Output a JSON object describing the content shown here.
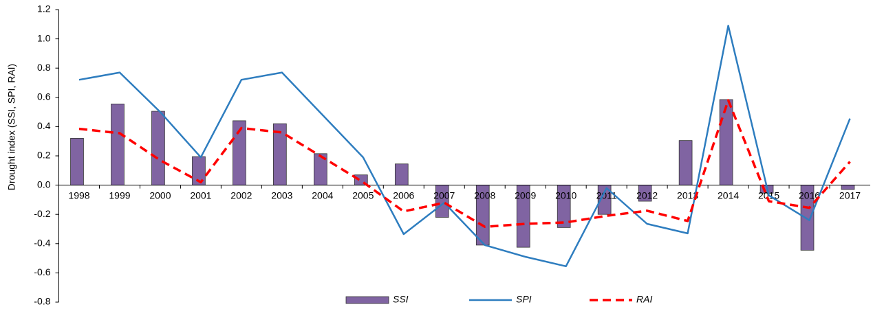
{
  "chart_data": {
    "type": "bar-line",
    "y_label": "Drought index (SSI, SPI, RAI)",
    "categories": [
      "1998",
      "1999",
      "2000",
      "2001",
      "2002",
      "2003",
      "2004",
      "2005",
      "2006",
      "2007",
      "2008",
      "2009",
      "2010",
      "2011",
      "2012",
      "2013",
      "2014",
      "2015",
      "2016",
      "2017"
    ],
    "series": [
      {
        "name": "SSI",
        "type": "bar",
        "color": "#8064a2",
        "values": [
          0.32,
          0.555,
          0.505,
          0.195,
          0.44,
          0.42,
          0.215,
          0.07,
          0.145,
          -0.22,
          -0.41,
          -0.425,
          -0.29,
          -0.2,
          -0.11,
          0.305,
          0.585,
          -0.055,
          -0.445,
          -0.03
        ]
      },
      {
        "name": "SPI",
        "type": "line",
        "color": "#2e7dbf",
        "values": [
          0.72,
          0.77,
          0.5,
          0.19,
          0.72,
          0.77,
          0.48,
          0.19,
          -0.335,
          -0.12,
          -0.41,
          -0.49,
          -0.555,
          -0.02,
          -0.265,
          -0.33,
          1.09,
          -0.07,
          -0.24,
          0.455
        ]
      },
      {
        "name": "RAI",
        "type": "line",
        "dashed": true,
        "color": "#ff0000",
        "values": [
          0.385,
          0.355,
          0.17,
          0.02,
          0.39,
          0.36,
          0.19,
          0.02,
          -0.18,
          -0.12,
          -0.285,
          -0.265,
          -0.255,
          -0.21,
          -0.175,
          -0.245,
          0.58,
          -0.11,
          -0.155,
          0.16
        ]
      }
    ],
    "ylim": [
      -0.8,
      1.2
    ],
    "yticks": [
      -0.8,
      -0.6,
      -0.4,
      -0.2,
      {
        "value": 0,
        "label": "0.0"
      },
      0.2,
      0.4,
      0.6,
      0.8,
      {
        "value": 1,
        "label": "1.0"
      },
      1.2
    ],
    "grid": false,
    "legend": "bottom"
  }
}
